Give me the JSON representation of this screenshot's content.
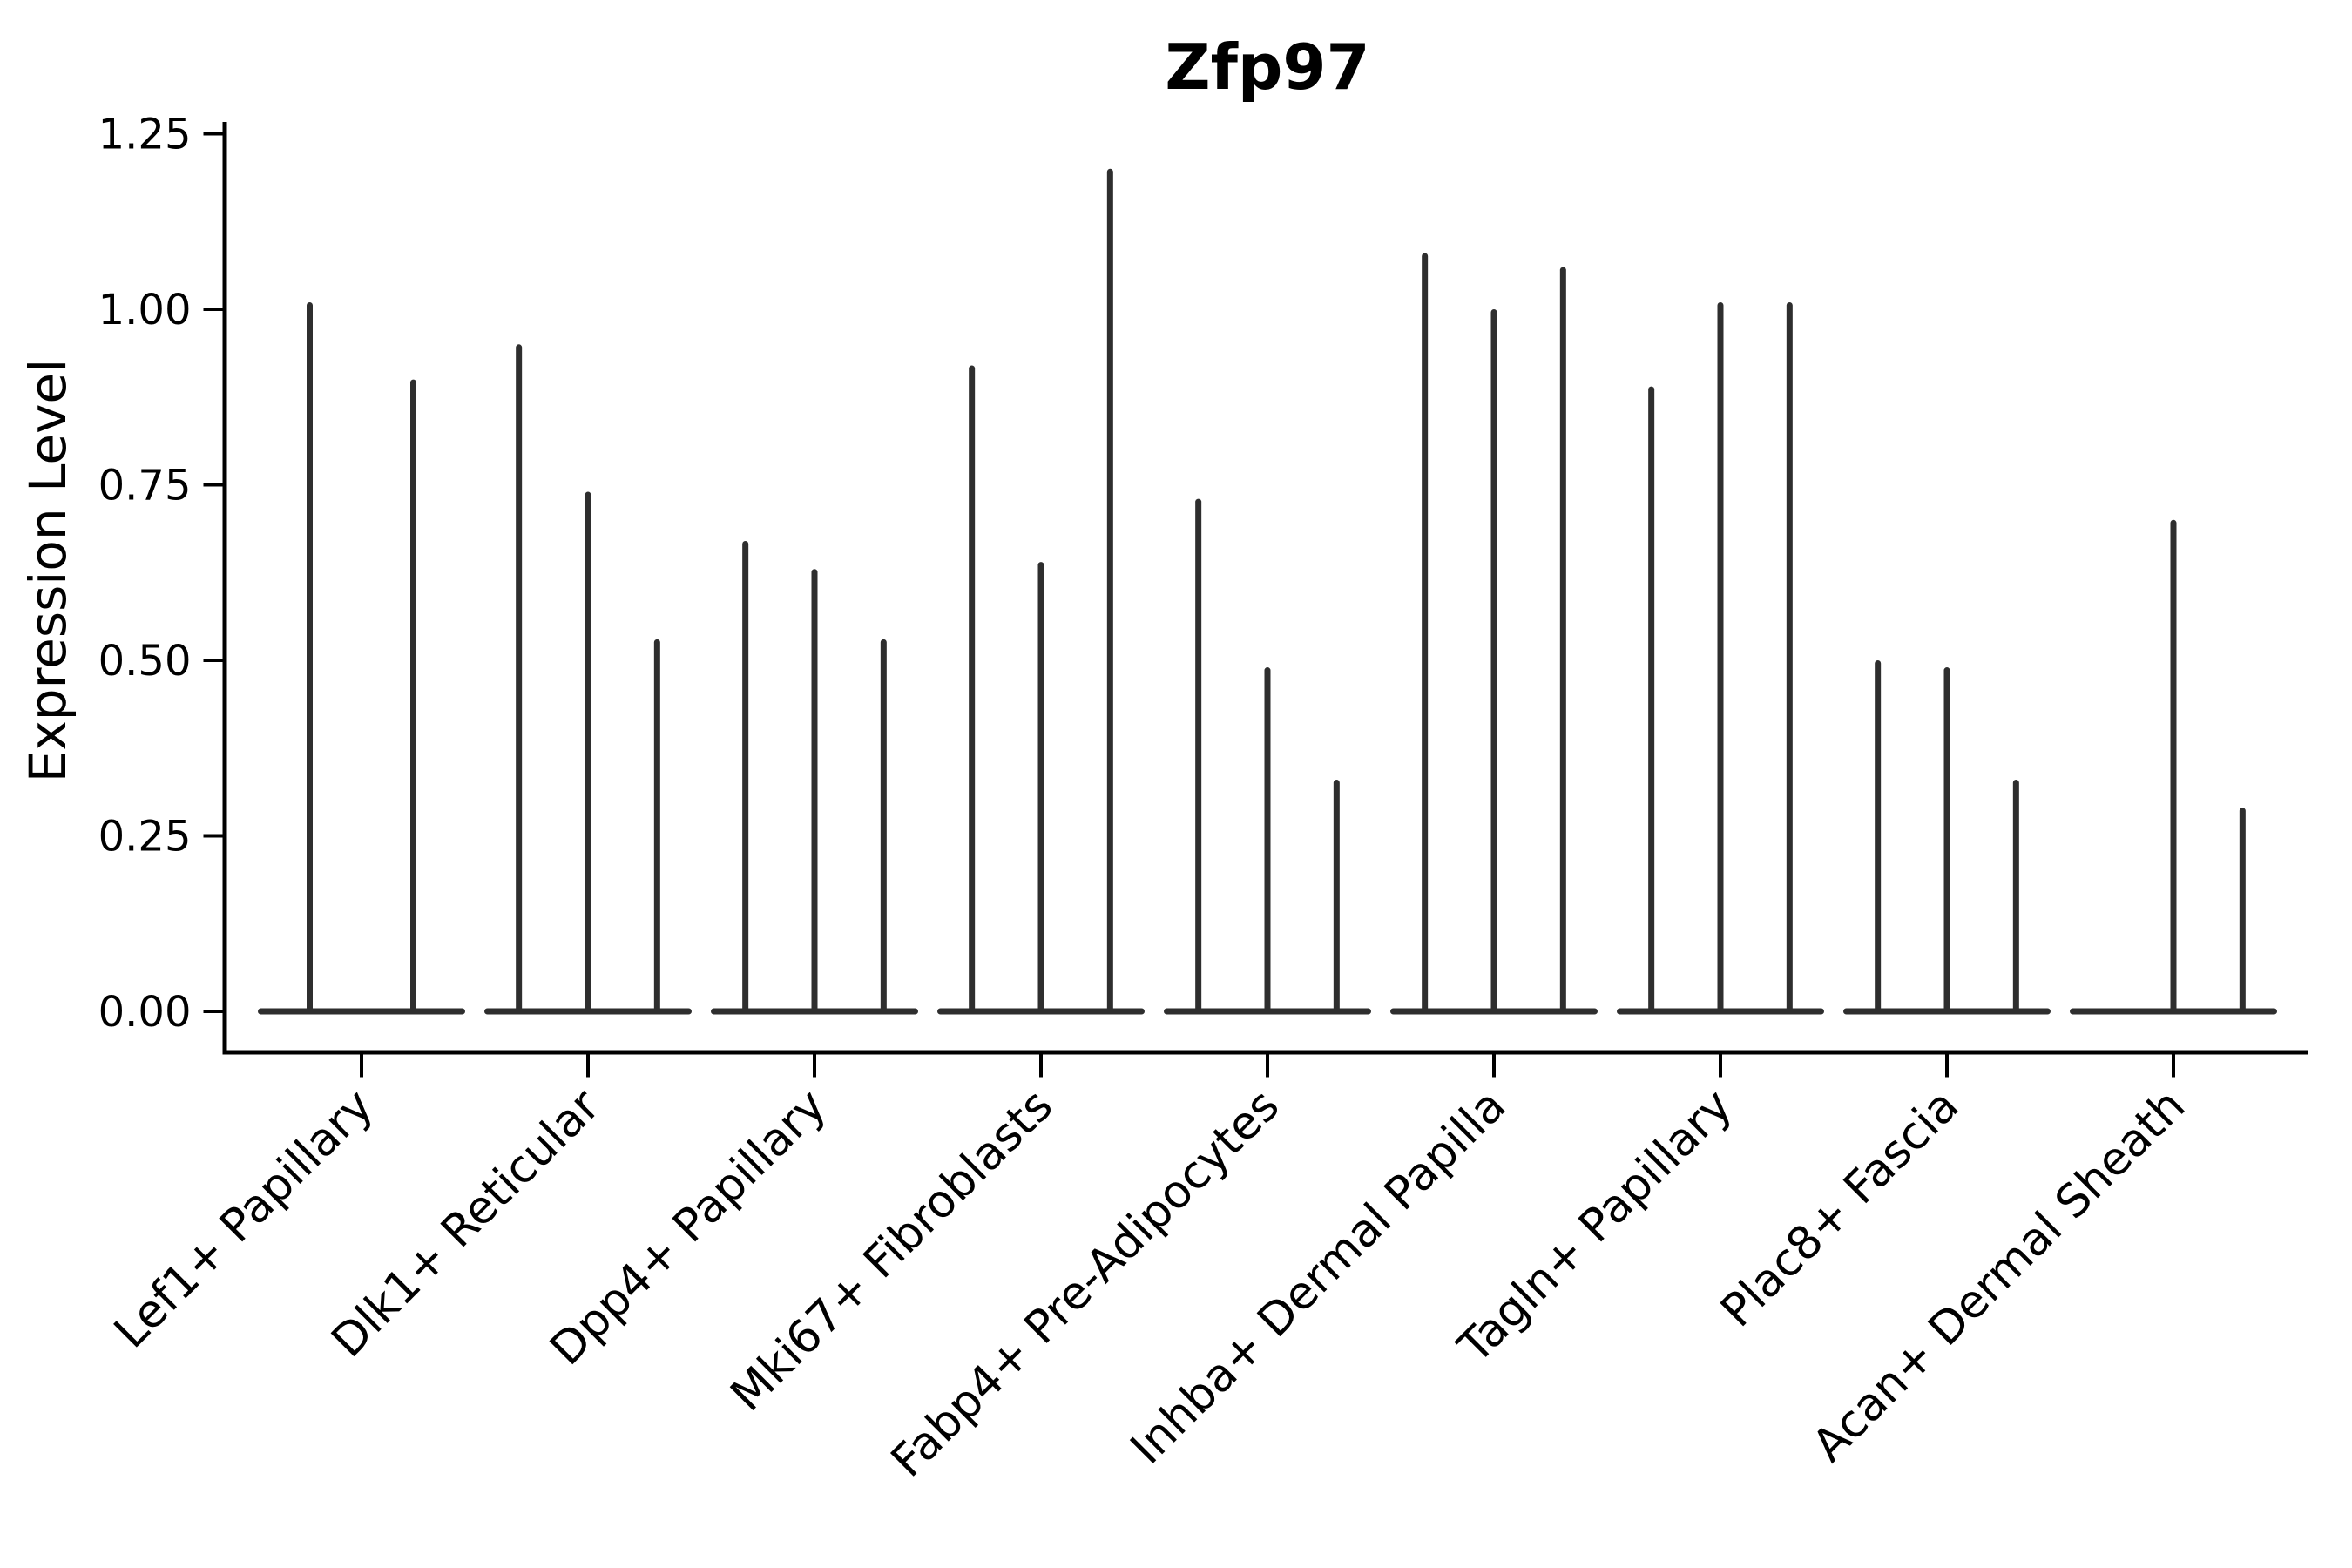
{
  "page": {
    "background": "#ffffff"
  },
  "chart_data": {
    "type": "violin",
    "title": "Zfp97",
    "xlabel": "",
    "ylabel": "Expression Level",
    "ylim": [
      0,
      1.25
    ],
    "yticks": [
      0.0,
      0.25,
      0.5,
      0.75,
      1.0,
      1.25
    ],
    "ytick_labels": [
      "0.00",
      "0.25",
      "0.50",
      "0.75",
      "1.00",
      "1.25"
    ],
    "grid": false,
    "legend": "none",
    "x_tick_label_rotation_deg": 45,
    "description": "Gene expression violin plot. Each category holds 2-3 extremely thin violins: a flat dark base at 0 (most cells have zero expression) and a thin vertical spike reaching the maximum expression value of that violin. A violin with spike_max 0 is a flat base only.",
    "categories": [
      "Lef1+ Papillary",
      "Dlk1+ Reticular",
      "Dpp4+ Papillary",
      "Mki67+ Fibroblasts",
      "Fabp4+ Pre-Adipocytes",
      "Inhba+ Dermal Papilla",
      "Tagln+ Papillary",
      "Plac8+ Fascia",
      "Acan+ Dermal Sheath"
    ],
    "series": [
      {
        "category": "Lef1+ Papillary",
        "spike_maxima": [
          1.01,
          0.9
        ]
      },
      {
        "category": "Dlk1+ Reticular",
        "spike_maxima": [
          0.95,
          0.74,
          0.53
        ]
      },
      {
        "category": "Dpp4+ Papillary",
        "spike_maxima": [
          0.67,
          0.63,
          0.53
        ]
      },
      {
        "category": "Mki67+ Fibroblasts",
        "spike_maxima": [
          0.92,
          0.64,
          1.2
        ]
      },
      {
        "category": "Fabp4+ Pre-Adipocytes",
        "spike_maxima": [
          0.73,
          0.49,
          0.33
        ]
      },
      {
        "category": "Inhba+ Dermal Papilla",
        "spike_maxima": [
          1.08,
          1.0,
          1.06
        ]
      },
      {
        "category": "Tagln+ Papillary",
        "spike_maxima": [
          0.89,
          1.01,
          1.01
        ]
      },
      {
        "category": "Plac8+ Fascia",
        "spike_maxima": [
          0.5,
          0.49,
          0.33
        ]
      },
      {
        "category": "Acan+ Dermal Sheath",
        "spike_maxima": [
          0,
          0.7,
          0.29
        ]
      }
    ],
    "colors": {
      "violin": "#2e2e2e",
      "axis": "#000000",
      "text": "#000000",
      "background": "#ffffff"
    }
  }
}
